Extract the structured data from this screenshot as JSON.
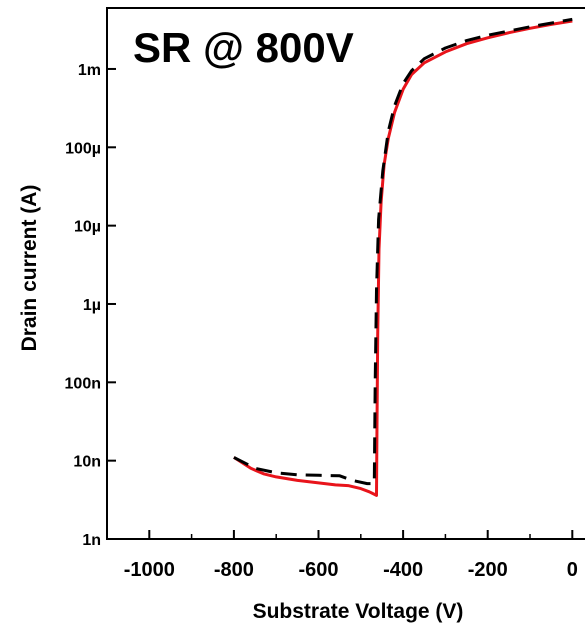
{
  "chart_data": {
    "type": "line",
    "title": "SR @ 800V",
    "xlabel": "Substrate Voltage (V)",
    "ylabel": "Drain current (A)",
    "xlim": [
      -1100,
      30
    ],
    "ylim": [
      1e-09,
      0.006
    ],
    "yscale": "log",
    "grid": false,
    "x_ticks": [
      {
        "value": -1000,
        "label": "-1000"
      },
      {
        "value": -800,
        "label": "-800"
      },
      {
        "value": -600,
        "label": "-600"
      },
      {
        "value": -400,
        "label": "-400"
      },
      {
        "value": -200,
        "label": "-200"
      },
      {
        "value": 0,
        "label": "0"
      }
    ],
    "y_ticks": [
      {
        "value": 1e-09,
        "label": "1n"
      },
      {
        "value": 1e-08,
        "label": "10n"
      },
      {
        "value": 1e-07,
        "label": "100n"
      },
      {
        "value": 1e-06,
        "label": "1µ"
      },
      {
        "value": 1e-05,
        "label": "10µ"
      },
      {
        "value": 0.0001,
        "label": "100µ"
      },
      {
        "value": 0.001,
        "label": "1m"
      }
    ],
    "series": [
      {
        "color": "#e8141b",
        "dash": "solid",
        "points": [
          [
            -800,
            1.1e-08
          ],
          [
            -760,
            8e-09
          ],
          [
            -730,
            6.8e-09
          ],
          [
            -700,
            6.2e-09
          ],
          [
            -650,
            5.6e-09
          ],
          [
            -600,
            5.2e-09
          ],
          [
            -560,
            4.9e-09
          ],
          [
            -530,
            4.8e-09
          ],
          [
            -500,
            4.4e-09
          ],
          [
            -480,
            4e-09
          ],
          [
            -463,
            3.6e-09
          ],
          [
            -462,
            2e-08
          ],
          [
            -460,
            4e-07
          ],
          [
            -457,
            5e-06
          ],
          [
            -452,
            2e-05
          ],
          [
            -445,
            6e-05
          ],
          [
            -435,
            0.00013
          ],
          [
            -420,
            0.00028
          ],
          [
            -400,
            0.00055
          ],
          [
            -380,
            0.00085
          ],
          [
            -350,
            0.0012
          ],
          [
            -300,
            0.00165
          ],
          [
            -250,
            0.0021
          ],
          [
            -200,
            0.0025
          ],
          [
            -150,
            0.0029
          ],
          [
            -100,
            0.0033
          ],
          [
            -50,
            0.0037
          ],
          [
            0,
            0.0041
          ]
        ]
      },
      {
        "color": "#000000",
        "dash": "dashed",
        "points": [
          [
            -800,
            1.1e-08
          ],
          [
            -750,
            8e-09
          ],
          [
            -700,
            7e-09
          ],
          [
            -650,
            6.6e-09
          ],
          [
            -600,
            6.5e-09
          ],
          [
            -550,
            6.4e-09
          ],
          [
            -520,
            5.6e-09
          ],
          [
            -485,
            5.1e-09
          ],
          [
            -468,
            5.1e-09
          ],
          [
            -466,
            1e-07
          ],
          [
            -463,
            1.5e-06
          ],
          [
            -458,
            1.2e-05
          ],
          [
            -448,
            5e-05
          ],
          [
            -435,
            0.00016
          ],
          [
            -420,
            0.00034
          ],
          [
            -400,
            0.00065
          ],
          [
            -380,
            0.00095
          ],
          [
            -350,
            0.00135
          ],
          [
            -300,
            0.00185
          ],
          [
            -250,
            0.0023
          ],
          [
            -200,
            0.0027
          ],
          [
            -150,
            0.00305
          ],
          [
            -100,
            0.00345
          ],
          [
            -50,
            0.00385
          ],
          [
            0,
            0.0043
          ]
        ]
      }
    ]
  }
}
